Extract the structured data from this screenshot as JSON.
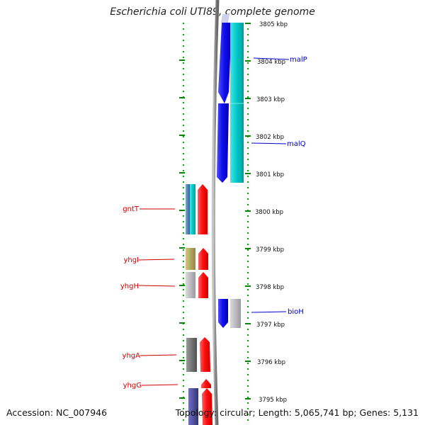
{
  "title": "Escherichia coli UTI89, complete genome",
  "footer": {
    "accession": "Accession: NC_007946",
    "summary": "Topology: circular; Length: 5,065,741 bp; Genes: 5,131"
  },
  "scale": {
    "unit": "kbp",
    "labels": [
      "3805 kbp",
      "3804 kbp",
      "3803 kbp",
      "3802 kbp",
      "3801 kbp",
      "3800 kbp",
      "3799 kbp",
      "3798 kbp",
      "3797 kbp",
      "3796 kbp",
      "3795 kbp"
    ]
  },
  "genes": [
    {
      "name": "malP",
      "color": "#0000bb"
    },
    {
      "name": "malQ",
      "color": "#0000bb"
    },
    {
      "name": "bioH",
      "color": "#0000bb"
    },
    {
      "name": "gntT",
      "color": "#cc0000"
    },
    {
      "name": "yhgI",
      "color": "#cc0000"
    },
    {
      "name": "yhgH",
      "color": "#cc0000"
    },
    {
      "name": "yhgA",
      "color": "#cc0000"
    },
    {
      "name": "yhgG",
      "color": "#cc0000"
    }
  ],
  "colors": {
    "forward_strand": "#ff1010",
    "reverse_strand": "#1010ee",
    "cog_cyan": "#00c8c8",
    "cog_steel": "#4a7fb0",
    "cog_olive": "#b0a860",
    "cog_gray": "#b4b4b8",
    "cog_dark": "#666666",
    "cog_navy": "#4a4a99",
    "backbone": "#888888",
    "tick_green": "#008800"
  }
}
